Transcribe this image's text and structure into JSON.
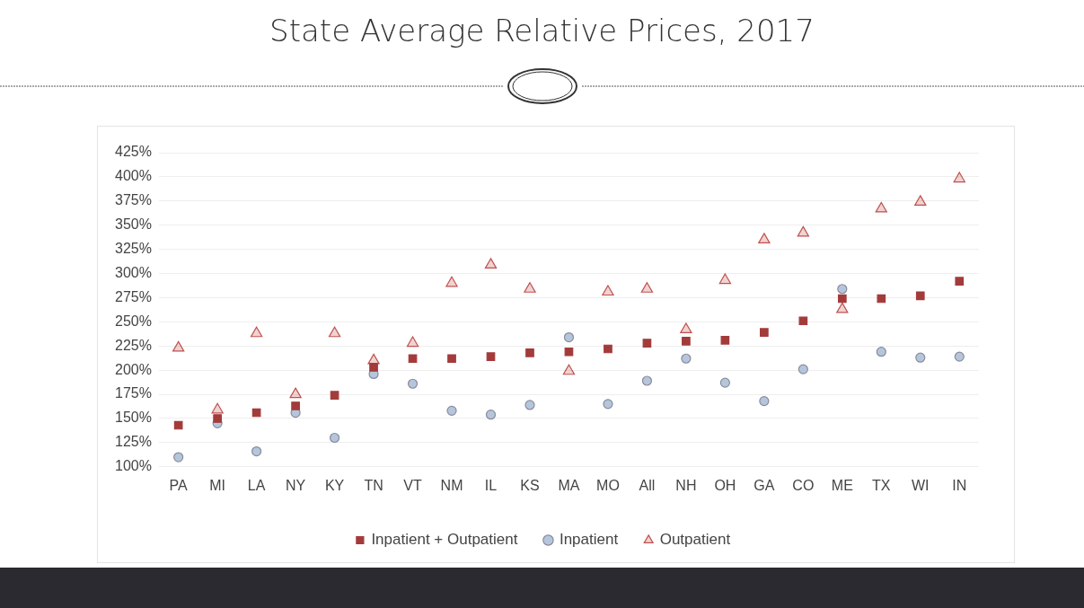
{
  "chart_data": {
    "type": "scatter",
    "title": "State Average Relative Prices, 2017",
    "categories": [
      "PA",
      "MI",
      "LA",
      "NY",
      "KY",
      "TN",
      "VT",
      "NM",
      "IL",
      "KS",
      "MA",
      "MO",
      "All",
      "NH",
      "OH",
      "GA",
      "CO",
      "ME",
      "TX",
      "WI",
      "IN"
    ],
    "series": [
      {
        "name": "Inpatient + Outpatient",
        "color": "#a33b3b",
        "marker": "square",
        "values": [
          143,
          150,
          156,
          163,
          174,
          203,
          212,
          212,
          214,
          218,
          219,
          222,
          228,
          230,
          231,
          239,
          251,
          274,
          274,
          277,
          292
        ]
      },
      {
        "name": "Inpatient",
        "color": "#b4c6dc",
        "marker": "circle",
        "values": [
          110,
          145,
          116,
          156,
          130,
          196,
          186,
          158,
          154,
          164,
          234,
          165,
          189,
          212,
          187,
          168,
          201,
          284,
          219,
          213,
          214
        ]
      },
      {
        "name": "Outpatient",
        "color": "#c0504d",
        "marker": "triangle",
        "values": [
          223,
          159,
          238,
          175,
          238,
          210,
          228,
          290,
          309,
          284,
          199,
          281,
          284,
          242,
          293,
          335,
          342,
          263,
          367,
          374,
          398
        ]
      }
    ],
    "ylim": [
      100,
      425
    ],
    "yticks": [
      {
        "value": 100,
        "label": "100%"
      },
      {
        "value": 125,
        "label": "125%"
      },
      {
        "value": 150,
        "label": "150%"
      },
      {
        "value": 175,
        "label": "175%"
      },
      {
        "value": 200,
        "label": "200%"
      },
      {
        "value": 225,
        "label": "225%"
      },
      {
        "value": 250,
        "label": "250%"
      },
      {
        "value": 275,
        "label": "275%"
      },
      {
        "value": 300,
        "label": "300%"
      },
      {
        "value": 325,
        "label": "325%"
      },
      {
        "value": 350,
        "label": "350%"
      },
      {
        "value": 375,
        "label": "375%"
      },
      {
        "value": 400,
        "label": "400%"
      },
      {
        "value": 425,
        "label": "425%"
      }
    ],
    "grid": "y",
    "legend": "bottom"
  }
}
